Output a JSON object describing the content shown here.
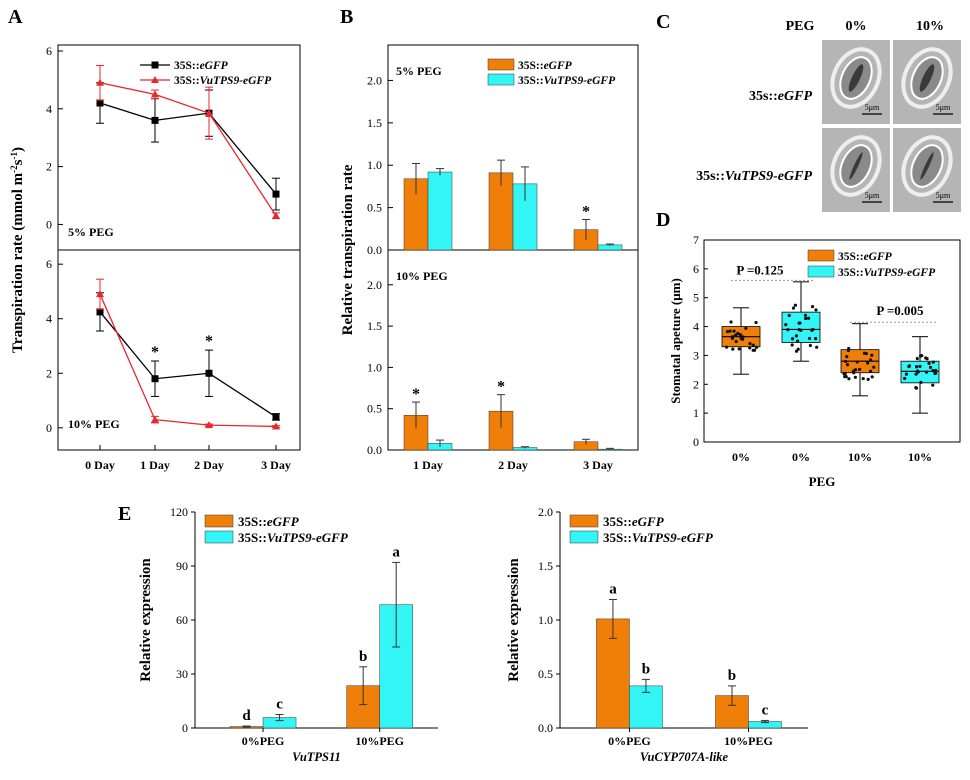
{
  "panels": {
    "A": "A",
    "B": "B",
    "C": "C",
    "D": "D",
    "E": "E"
  },
  "colors": {
    "wt": "#000000",
    "oe": "#e8282c",
    "orange": "#f07f0a",
    "cyan": "#34f5f5"
  },
  "chart_data": [
    {
      "id": "A",
      "type": "line",
      "ylabel": "Transpiration rate  (mmol m⁻²s⁻¹)",
      "categories": [
        "0 Day",
        "1 Day",
        "2 Day",
        "3 Day"
      ],
      "legend": {
        "position": "top-right"
      },
      "subplots": [
        {
          "label": "5% PEG",
          "ylim": [
            -0.4,
            6
          ],
          "yticks": [
            0,
            2,
            4,
            6
          ],
          "series": [
            {
              "name": "35S::eGFP",
              "marker": "square",
              "values": [
                4.2,
                3.6,
                3.85,
                1.05
              ],
              "err": [
                0.7,
                0.75,
                0.8,
                0.55
              ]
            },
            {
              "name": "35S::VuTPS9-eGFP",
              "marker": "triangle",
              "values": [
                4.9,
                4.5,
                3.85,
                0.3
              ],
              "err": [
                0.6,
                0.15,
                0.9,
                0.1
              ]
            }
          ],
          "sig": []
        },
        {
          "label": "10% PEG",
          "ylim": [
            -0.3,
            6.3
          ],
          "yticks": [
            0,
            2,
            4,
            6
          ],
          "series": [
            {
              "name": "35S::eGFP",
              "marker": "square",
              "values": [
                4.25,
                1.8,
                2.0,
                0.4
              ],
              "err": [
                0.7,
                0.65,
                0.85,
                0.12
              ]
            },
            {
              "name": "35S::VuTPS9-eGFP",
              "marker": "triangle",
              "values": [
                4.9,
                0.3,
                0.1,
                0.05
              ],
              "err": [
                0.55,
                0.12,
                0.04,
                0.03
              ]
            }
          ],
          "sig": [
            1,
            2
          ]
        }
      ]
    },
    {
      "id": "B",
      "type": "bar",
      "ylabel": "Relative transpiration rate",
      "categories": [
        "1 Day",
        "2 Day",
        "3 Day"
      ],
      "legend": {
        "position": "top-right"
      },
      "series_names": [
        "35S::eGFP",
        "35S::VuTPS9-eGFP"
      ],
      "subplots": [
        {
          "label": "5% PEG",
          "ylim": [
            0,
            2.3
          ],
          "yticks": [
            "0.0",
            "0.5",
            "1.0",
            "1.5",
            "2.0"
          ],
          "values": [
            [
              0.84,
              0.92
            ],
            [
              0.91,
              0.78
            ],
            [
              0.24,
              0.06
            ]
          ],
          "err": [
            [
              0.18,
              0.04
            ],
            [
              0.15,
              0.2
            ],
            [
              0.12,
              0.01
            ]
          ],
          "sig": [
            2
          ]
        },
        {
          "label": "10% PEG",
          "ylim": [
            0,
            2.3
          ],
          "yticks": [
            "0.0",
            "0.5",
            "1.0",
            "1.5",
            "2.0"
          ],
          "values": [
            [
              0.42,
              0.08
            ],
            [
              0.47,
              0.03
            ],
            [
              0.1,
              0.01
            ]
          ],
          "err": [
            [
              0.16,
              0.04
            ],
            [
              0.2,
              0.01
            ],
            [
              0.03,
              0.01
            ]
          ],
          "sig": [
            0,
            1
          ]
        }
      ]
    },
    {
      "id": "D",
      "type": "box",
      "ylabel": "Stomatal apeture (μm)",
      "xlabel": "PEG",
      "categories": [
        "0%",
        "0%",
        "10%",
        "10%"
      ],
      "ylim": [
        0,
        7
      ],
      "yticks": [
        0,
        1,
        2,
        3,
        4,
        5,
        6,
        7
      ],
      "legend": [
        "35S::eGFP",
        "35S::VuTPS9-eGFP"
      ],
      "boxes": [
        {
          "group": "35S::eGFP",
          "min": 2.35,
          "q1": 3.3,
          "median": 3.65,
          "q3": 4.0,
          "max": 4.65
        },
        {
          "group": "35S::VuTPS9-eGFP",
          "min": 2.8,
          "q1": 3.45,
          "median": 3.9,
          "q3": 4.5,
          "max": 5.55
        },
        {
          "group": "35S::eGFP",
          "min": 1.6,
          "q1": 2.4,
          "median": 2.8,
          "q3": 3.2,
          "max": 4.1
        },
        {
          "group": "35S::VuTPS9-eGFP",
          "min": 1.0,
          "q1": 2.05,
          "median": 2.45,
          "q3": 2.8,
          "max": 3.65
        }
      ],
      "pvalues": [
        "P =0.125",
        "P =0.005"
      ]
    },
    {
      "id": "E1",
      "type": "bar",
      "ylabel": "Relative expression",
      "gene": "VuTPS11",
      "categories": [
        "0%PEG",
        "10%PEG"
      ],
      "series_names": [
        "35S::eGFP",
        "35S::VuTPS9-eGFP"
      ],
      "ylim": [
        0,
        120
      ],
      "yticks": [
        0,
        30,
        60,
        90,
        120
      ],
      "values": [
        [
          0.8,
          5.8
        ],
        [
          23.5,
          68.5
        ]
      ],
      "err": [
        [
          0.3,
          1.7
        ],
        [
          10.5,
          23.5
        ]
      ],
      "letters": [
        [
          "d",
          "c"
        ],
        [
          "b",
          "a"
        ]
      ]
    },
    {
      "id": "E2",
      "type": "bar",
      "ylabel": "Relative expression",
      "gene": "VuCYP707A-like",
      "categories": [
        "0%PEG",
        "10%PEG"
      ],
      "series_names": [
        "35S::eGFP",
        "35S::VuTPS9-eGFP"
      ],
      "ylim": [
        0,
        2.0
      ],
      "yticks": [
        "0.0",
        "0.5",
        "1.0",
        "1.5",
        "2.0"
      ],
      "values": [
        [
          1.01,
          0.39
        ],
        [
          0.3,
          0.06
        ]
      ],
      "err": [
        [
          0.18,
          0.06
        ],
        [
          0.09,
          0.01
        ]
      ],
      "letters": [
        [
          "a",
          "b"
        ],
        [
          "b",
          "c"
        ]
      ]
    }
  ],
  "panelC": {
    "header": "PEG",
    "cols": [
      "0%",
      "10%"
    ],
    "rows": [
      "35s::eGFP",
      "35s::VuTPS9-eGFP"
    ],
    "scale": [
      "5μm",
      "5μm",
      "5μm",
      "5μm"
    ]
  },
  "legend_parts": {
    "prefix": "35S::",
    "wt_italic": "eGFP",
    "oe_italic": "VuTPS9-eGFP",
    "prefix_c": "35s::"
  }
}
